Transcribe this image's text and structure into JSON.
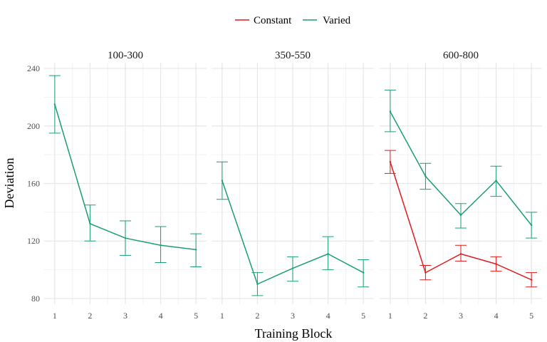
{
  "chart_data": {
    "type": "line",
    "xlabel": "Training Block",
    "ylabel": "Deviation",
    "ylim": [
      76,
      244
    ],
    "xlim": [
      0.7,
      5.3
    ],
    "y_ticks": [
      80,
      120,
      160,
      200,
      240
    ],
    "x_ticks": [
      1,
      2,
      3,
      4,
      5
    ],
    "legend": {
      "position": "top",
      "entries": [
        {
          "name": "Constant",
          "color": "#e41a1c"
        },
        {
          "name": "Varied",
          "color": "#1b9e77"
        }
      ]
    },
    "grid": true,
    "error_bars": true,
    "panels": [
      {
        "label": "100-300",
        "series": [
          {
            "name": "Varied",
            "color": "#1b9e77",
            "x": [
              1,
              2,
              3,
              4,
              5
            ],
            "y": [
              215,
              132,
              122,
              117,
              114
            ],
            "lower": [
              195,
              120,
              110,
              105,
              102
            ],
            "upper": [
              235,
              145,
              134,
              130,
              125
            ]
          }
        ]
      },
      {
        "label": "350-550",
        "series": [
          {
            "name": "Varied",
            "color": "#1b9e77",
            "x": [
              1,
              2,
              3,
              4,
              5
            ],
            "y": [
              162,
              90,
              101,
              111,
              98
            ],
            "lower": [
              149,
              82,
              92,
              100,
              88
            ],
            "upper": [
              175,
              98,
              109,
              123,
              107
            ]
          }
        ]
      },
      {
        "label": "600-800",
        "series": [
          {
            "name": "Constant",
            "color": "#e41a1c",
            "x": [
              1,
              2,
              3,
              4,
              5
            ],
            "y": [
              175,
              98,
              111,
              104,
              93
            ],
            "lower": [
              167,
              93,
              106,
              99,
              88
            ],
            "upper": [
              183,
              103,
              117,
              109,
              98
            ]
          },
          {
            "name": "Varied",
            "color": "#1b9e77",
            "x": [
              1,
              2,
              3,
              4,
              5
            ],
            "y": [
              210,
              165,
              138,
              162,
              131
            ],
            "lower": [
              196,
              156,
              129,
              151,
              122
            ],
            "upper": [
              225,
              174,
              146,
              172,
              140
            ]
          }
        ]
      }
    ]
  }
}
